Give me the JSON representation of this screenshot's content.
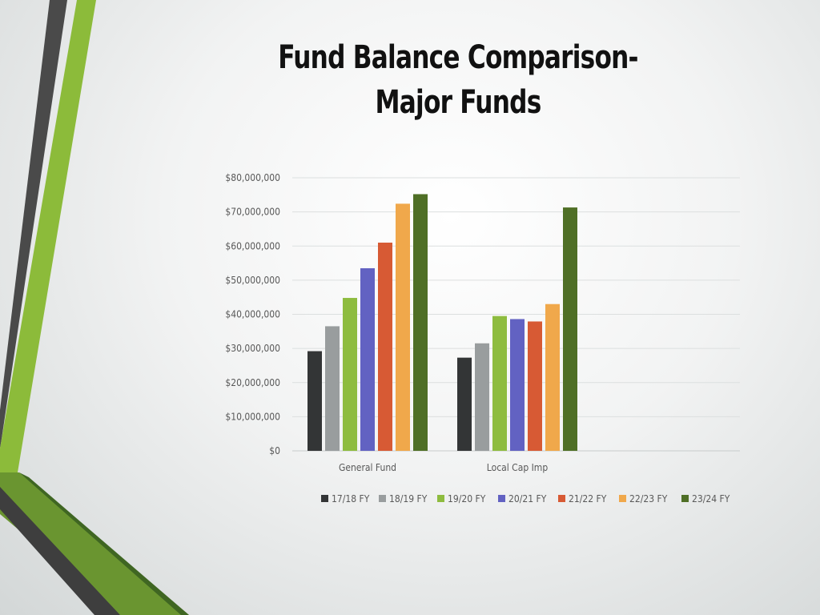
{
  "slide": {
    "title_line1": "Fund Balance Comparison-",
    "title_line2": "Major Funds"
  },
  "colors": {
    "accent_green": "#8cbb3a",
    "dark_gray": "#4a4a4a",
    "dark_green": "#4d7a26"
  },
  "chart_data": {
    "type": "bar",
    "categories": [
      "General Fund",
      "Local Cap Imp"
    ],
    "series": [
      {
        "name": "17/18 FY",
        "color": "#333536",
        "values": [
          29200000,
          27300000
        ]
      },
      {
        "name": "18/19 FY",
        "color": "#999d9e",
        "values": [
          36500000,
          31500000
        ]
      },
      {
        "name": "19/20 FY",
        "color": "#8ebc3f",
        "values": [
          44800000,
          39500000
        ]
      },
      {
        "name": "20/21 FY",
        "color": "#6262c2",
        "values": [
          53500000,
          38600000
        ]
      },
      {
        "name": "21/22 FY",
        "color": "#d75a34",
        "values": [
          61000000,
          37900000
        ]
      },
      {
        "name": "22/23 FY",
        "color": "#f0a84b",
        "values": [
          72400000,
          43000000
        ]
      },
      {
        "name": "23/24 FY",
        "color": "#4f6f26",
        "values": [
          75200000,
          71300000
        ]
      }
    ],
    "yticks": [
      "$0",
      "$10,000,000",
      "$20,000,000",
      "$30,000,000",
      "$40,000,000",
      "$50,000,000",
      "$60,000,000",
      "$70,000,000",
      "$80,000,000"
    ],
    "ylim": [
      0,
      80000000
    ],
    "grid": true,
    "legend_position": "bottom"
  }
}
